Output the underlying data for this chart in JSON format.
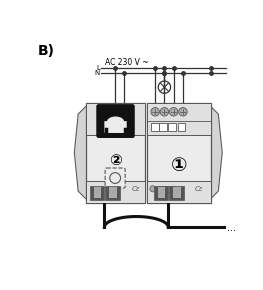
{
  "title": "B)",
  "ac_label": "AC 230 V ~",
  "L_label": "L",
  "N_label": "N",
  "bg_color": "#ffffff",
  "light_gray": "#d4d4d4",
  "mid_gray": "#aaaaaa",
  "dark_gray": "#555555",
  "darker_gray": "#444444",
  "line_color": "#333333",
  "device_bg": "#ececec",
  "device_bg2": "#e0e0e0",
  "device_border": "#555555",
  "black": "#111111",
  "screw_color": "#888888",
  "terminal_dark": "#555555",
  "terminal_light": "#999999",
  "cable_color": "#111111"
}
